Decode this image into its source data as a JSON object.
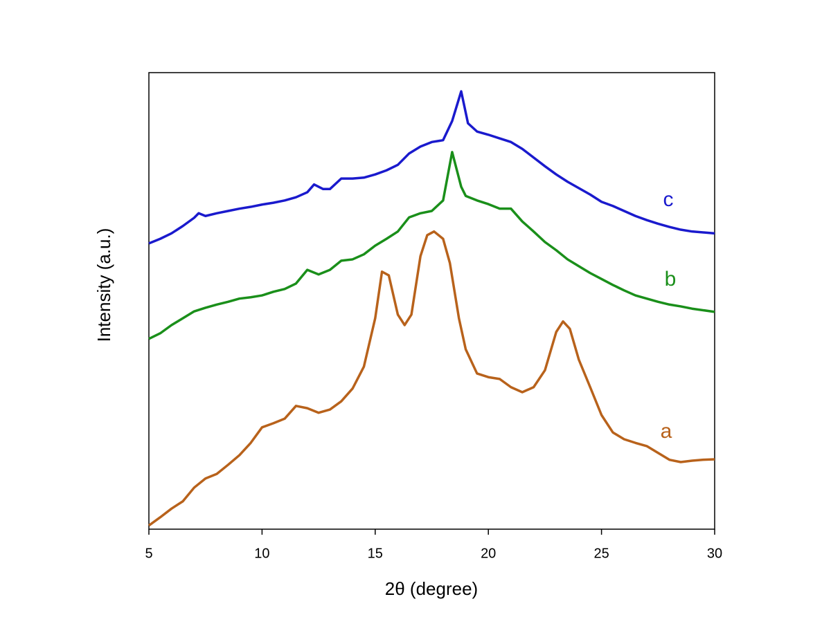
{
  "chart_data": {
    "type": "line",
    "xlabel": "2θ (degree)",
    "ylabel": "Intensity (a.u.)",
    "xlim": [
      5,
      30
    ],
    "xticks": [
      5,
      10,
      15,
      20,
      25,
      30
    ],
    "ylim": [
      0,
      100
    ],
    "series": [
      {
        "name": "a",
        "color": "#b8621b",
        "x": [
          5,
          5.5,
          6,
          6.5,
          7,
          7.5,
          8,
          8.5,
          9,
          9.5,
          10,
          10.5,
          11,
          11.5,
          12,
          12.5,
          13,
          13.5,
          14,
          14.5,
          15,
          15.3,
          15.6,
          16,
          16.3,
          16.6,
          17,
          17.3,
          17.6,
          18,
          18.3,
          18.7,
          19,
          19.5,
          20,
          20.5,
          21,
          21.5,
          22,
          22.5,
          23,
          23.3,
          23.6,
          24,
          24.5,
          25,
          25.5,
          26,
          26.5,
          27,
          27.5,
          28,
          28.5,
          29,
          29.5,
          30
        ],
        "values": [
          0.8,
          2.6,
          4.5,
          6.1,
          9.1,
          11.1,
          12.1,
          14.1,
          16.2,
          18.9,
          22.3,
          23.2,
          24.2,
          27.0,
          26.5,
          25.5,
          26.2,
          28.0,
          30.8,
          35.6,
          46.2,
          56.4,
          55.6,
          47.0,
          44.7,
          47.0,
          59.8,
          64.4,
          65.2,
          63.6,
          58.3,
          46.2,
          39.4,
          34.1,
          33.3,
          32.9,
          31.1,
          30.0,
          31.1,
          34.8,
          43.2,
          45.5,
          43.9,
          37.1,
          31.1,
          25.0,
          21.2,
          19.7,
          18.9,
          18.2,
          16.7,
          15.2,
          14.7,
          15.0,
          15.2,
          15.3
        ]
      },
      {
        "name": "b",
        "color": "#1a8f1a",
        "x": [
          5,
          5.5,
          6,
          6.5,
          7,
          7.5,
          8,
          8.5,
          9,
          9.5,
          10,
          10.5,
          11,
          11.5,
          12,
          12.5,
          13,
          13.5,
          14,
          14.5,
          15,
          15.5,
          16,
          16.5,
          17,
          17.5,
          18,
          18.4,
          18.8,
          19,
          19.5,
          20,
          20.5,
          21,
          21.5,
          22,
          22.5,
          23,
          23.5,
          24,
          24.5,
          25,
          25.5,
          26,
          26.5,
          27,
          27.5,
          28,
          28.5,
          29,
          30
        ],
        "values": [
          41.7,
          42.9,
          44.7,
          46.2,
          47.7,
          48.5,
          49.2,
          49.8,
          50.5,
          50.8,
          51.2,
          52.0,
          52.6,
          53.8,
          56.8,
          55.8,
          56.8,
          58.8,
          59.1,
          60.2,
          62.1,
          63.6,
          65.2,
          68.3,
          69.2,
          69.7,
          72.0,
          82.6,
          75.0,
          73.0,
          72.0,
          71.2,
          70.2,
          70.2,
          67.4,
          65.2,
          62.9,
          61.1,
          59.1,
          57.6,
          56.1,
          54.8,
          53.5,
          52.3,
          51.2,
          50.5,
          49.8,
          49.2,
          48.8,
          48.3,
          47.6
        ]
      },
      {
        "name": "c",
        "color": "#1a1acd",
        "x": [
          5,
          5.5,
          6,
          6.5,
          7,
          7.2,
          7.5,
          8,
          8.5,
          9,
          9.5,
          10,
          10.5,
          11,
          11.5,
          12,
          12.3,
          12.7,
          13,
          13.5,
          14,
          14.5,
          15,
          15.5,
          16,
          16.5,
          17,
          17.5,
          18,
          18.4,
          18.8,
          19.1,
          19.5,
          20,
          20.5,
          21,
          21.5,
          22,
          22.5,
          23,
          23.5,
          24,
          24.5,
          25,
          25.5,
          26,
          26.5,
          27,
          27.5,
          28,
          28.5,
          29,
          30
        ],
        "values": [
          62.6,
          63.6,
          64.8,
          66.4,
          68.2,
          69.2,
          68.6,
          69.2,
          69.7,
          70.2,
          70.6,
          71.1,
          71.5,
          72.0,
          72.7,
          73.8,
          75.5,
          74.5,
          74.5,
          76.8,
          76.8,
          77.0,
          77.7,
          78.6,
          79.8,
          82.3,
          83.8,
          84.8,
          85.2,
          89.4,
          95.9,
          88.9,
          87.1,
          86.4,
          85.6,
          84.8,
          83.3,
          81.4,
          79.5,
          77.7,
          76.1,
          74.7,
          73.3,
          71.7,
          70.8,
          69.7,
          68.6,
          67.7,
          66.9,
          66.2,
          65.6,
          65.2,
          64.8
        ]
      }
    ]
  }
}
